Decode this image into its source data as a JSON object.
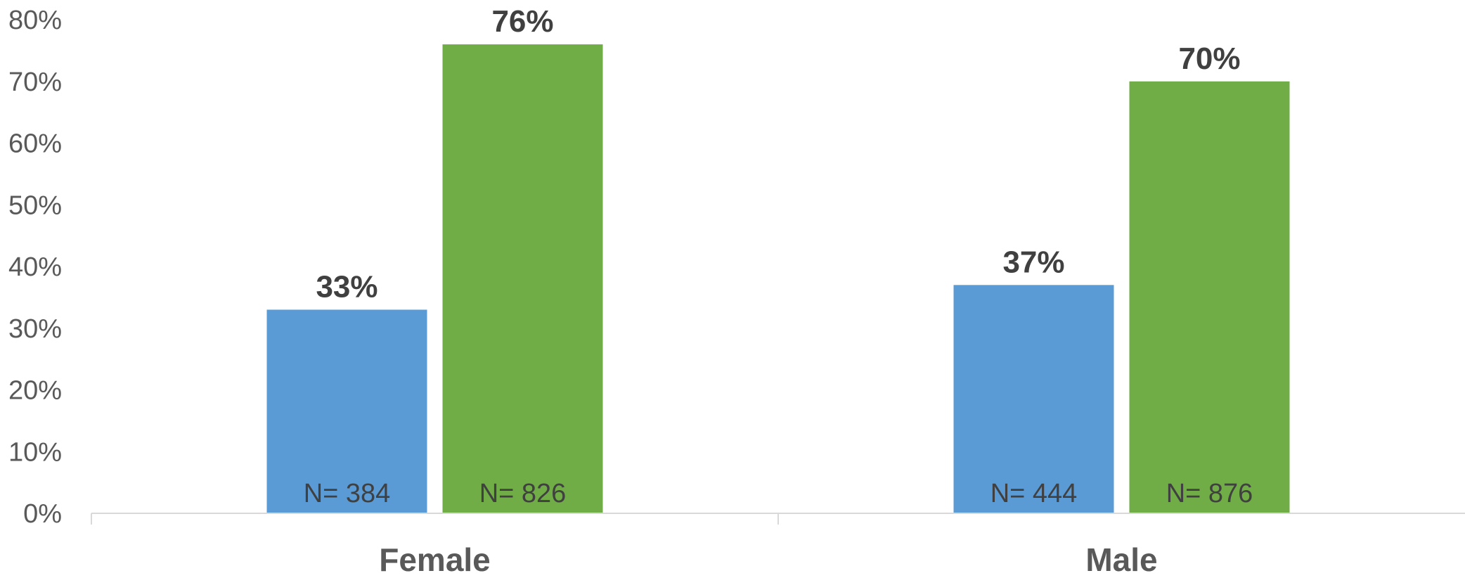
{
  "chart_data": {
    "type": "bar",
    "title": "",
    "xlabel": "",
    "ylabel": "",
    "ylim": [
      0,
      80
    ],
    "yticks": [
      "0%",
      "10%",
      "20%",
      "30%",
      "40%",
      "50%",
      "60%",
      "70%",
      "80%"
    ],
    "categories": [
      "Female",
      "Male"
    ],
    "series": [
      {
        "color": "#5B9BD5",
        "values": [
          33,
          37
        ],
        "value_labels": [
          "33%",
          "37%"
        ],
        "n_labels": [
          "N= 384",
          "N= 444"
        ]
      },
      {
        "color": "#70AD47",
        "values": [
          76,
          70
        ],
        "value_labels": [
          "76%",
          "70%"
        ],
        "n_labels": [
          "N= 826",
          "N= 876"
        ]
      }
    ],
    "grid": false,
    "legend": "none"
  }
}
